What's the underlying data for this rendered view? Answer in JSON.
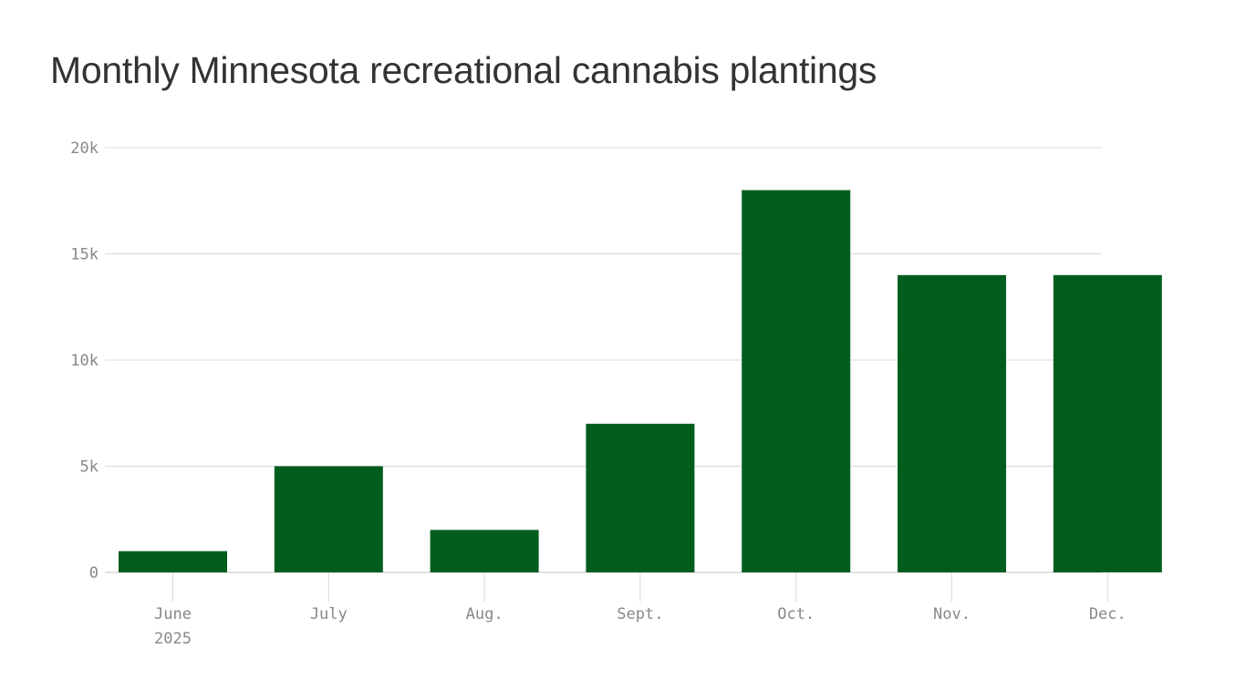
{
  "chart_data": {
    "type": "bar",
    "title": "Monthly Minnesota recreational cannabis plantings",
    "categories": [
      "June",
      "July",
      "Aug.",
      "Sept.",
      "Oct.",
      "Nov.",
      "Dec."
    ],
    "category_sublabels": [
      "2025",
      "",
      "",
      "",
      "",
      "",
      ""
    ],
    "values": [
      1000,
      5000,
      2000,
      7000,
      18000,
      14000,
      14000
    ],
    "ylim": [
      0,
      20000
    ],
    "yticks": [
      0,
      5000,
      10000,
      15000,
      20000
    ],
    "ytick_labels": [
      "0",
      "5k",
      "10k",
      "15k",
      "20k"
    ],
    "xlabel": "",
    "ylabel": "",
    "grid": true,
    "colors": {
      "bar": "#005d1e",
      "grid": "#d9d9d9",
      "text": "#888888",
      "title": "#333333"
    }
  }
}
